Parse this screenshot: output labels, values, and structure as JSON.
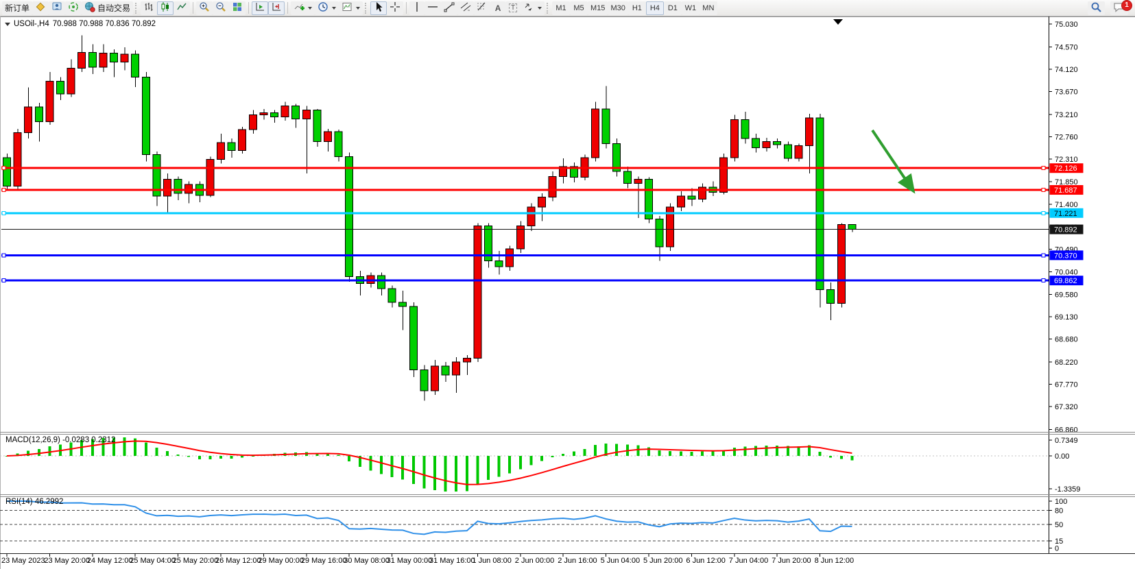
{
  "toolbar": {
    "new_order_label": "新订单",
    "auto_trading_label": "自动交易",
    "timeframes": [
      "M1",
      "M5",
      "M15",
      "M30",
      "H1",
      "H4",
      "D1",
      "W1",
      "MN"
    ],
    "active_timeframe": "H4",
    "notification_badge": "1",
    "glyphs": {
      "text_tool": "A",
      "label_tool": "T"
    }
  },
  "chart": {
    "title": "USOil-,H4",
    "quote": "70.988 70.988 70.836 70.892"
  },
  "chart_data": {
    "type": "candlestick",
    "symbol": "USOil-",
    "timeframe": "H4",
    "current_quote": {
      "open": "70.988",
      "high": "70.988",
      "low": "70.836",
      "close": "70.892"
    },
    "price_ticks": [
      "75.030",
      "74.570",
      "74.120",
      "73.670",
      "73.210",
      "72.760",
      "72.310",
      "71.850",
      "71.400",
      "70.940",
      "70.490",
      "70.040",
      "69.580",
      "69.130",
      "68.680",
      "68.220",
      "67.770",
      "67.320",
      "66.860"
    ],
    "time_labels": [
      "23 May 2023",
      "23 May 20:00",
      "24 May 12:00",
      "25 May 04:00",
      "25 May 20:00",
      "26 May 12:00",
      "29 May 00:00",
      "29 May 16:00",
      "30 May 08:00",
      "31 May 00:00",
      "31 May 16:00",
      "1 Jun 08:00",
      "2 Jun 00:00",
      "2 Jun 16:00",
      "5 Jun 04:00",
      "5 Jun 20:00",
      "6 Jun 12:00",
      "7 Jun 04:00",
      "7 Jun 20:00",
      "8 Jun 12:00"
    ],
    "colors": {
      "up": "#ee0000",
      "down": "#00d000",
      "wick": "#000000"
    },
    "candles": [
      [
        72.34,
        72.42,
        71.7,
        71.76
      ],
      [
        71.76,
        72.92,
        71.68,
        72.84
      ],
      [
        72.84,
        73.75,
        72.72,
        73.36
      ],
      [
        73.36,
        73.44,
        72.66,
        73.06
      ],
      [
        73.06,
        74.06,
        73.0,
        73.88
      ],
      [
        73.88,
        73.96,
        73.5,
        73.62
      ],
      [
        73.62,
        74.32,
        73.56,
        74.14
      ],
      [
        74.14,
        74.8,
        74.06,
        74.46
      ],
      [
        74.46,
        74.62,
        74.02,
        74.16
      ],
      [
        74.16,
        74.62,
        74.06,
        74.44
      ],
      [
        74.44,
        74.52,
        73.96,
        74.26
      ],
      [
        74.26,
        74.56,
        74.1,
        74.42
      ],
      [
        74.42,
        74.5,
        73.76,
        73.96
      ],
      [
        73.96,
        74.06,
        72.26,
        72.4
      ],
      [
        72.4,
        72.46,
        71.36,
        71.56
      ],
      [
        71.56,
        72.02,
        71.24,
        71.9
      ],
      [
        71.9,
        71.96,
        71.48,
        71.62
      ],
      [
        71.62,
        71.86,
        71.42,
        71.8
      ],
      [
        71.8,
        71.86,
        71.44,
        71.58
      ],
      [
        71.58,
        72.36,
        71.54,
        72.3
      ],
      [
        72.3,
        72.82,
        72.22,
        72.64
      ],
      [
        72.64,
        72.72,
        72.34,
        72.48
      ],
      [
        72.48,
        72.96,
        72.42,
        72.9
      ],
      [
        72.9,
        73.3,
        72.82,
        73.2
      ],
      [
        73.2,
        73.32,
        73.1,
        73.24
      ],
      [
        73.24,
        73.3,
        73.04,
        73.16
      ],
      [
        73.16,
        73.46,
        73.08,
        73.38
      ],
      [
        73.38,
        73.42,
        72.94,
        73.12
      ],
      [
        73.12,
        73.38,
        72.02,
        73.3
      ],
      [
        73.3,
        73.32,
        72.56,
        72.66
      ],
      [
        72.66,
        72.92,
        72.46,
        72.86
      ],
      [
        72.86,
        72.9,
        72.26,
        72.36
      ],
      [
        72.36,
        72.44,
        69.84,
        69.94
      ],
      [
        69.94,
        70.06,
        69.56,
        69.8
      ],
      [
        69.8,
        70.02,
        69.72,
        69.96
      ],
      [
        69.96,
        70.02,
        69.56,
        69.7
      ],
      [
        69.7,
        69.76,
        69.32,
        69.42
      ],
      [
        69.42,
        69.66,
        68.86,
        69.34
      ],
      [
        69.34,
        69.42,
        67.92,
        68.06
      ],
      [
        68.06,
        68.16,
        67.44,
        67.64
      ],
      [
        67.64,
        68.26,
        67.56,
        68.14
      ],
      [
        68.14,
        68.22,
        67.82,
        67.96
      ],
      [
        67.96,
        68.32,
        67.6,
        68.22
      ],
      [
        68.22,
        68.36,
        67.96,
        68.3
      ],
      [
        68.3,
        71.02,
        68.22,
        70.96
      ],
      [
        70.96,
        71.02,
        70.12,
        70.26
      ],
      [
        70.26,
        70.46,
        69.98,
        70.14
      ],
      [
        70.14,
        70.56,
        70.06,
        70.5
      ],
      [
        70.5,
        71.06,
        70.42,
        70.96
      ],
      [
        70.96,
        71.42,
        70.86,
        71.34
      ],
      [
        71.34,
        71.62,
        71.06,
        71.54
      ],
      [
        71.54,
        72.06,
        71.46,
        71.96
      ],
      [
        71.96,
        72.32,
        71.82,
        72.16
      ],
      [
        72.16,
        72.24,
        71.84,
        71.94
      ],
      [
        71.94,
        72.4,
        71.88,
        72.34
      ],
      [
        72.34,
        73.46,
        72.26,
        73.32
      ],
      [
        73.32,
        73.78,
        72.52,
        72.62
      ],
      [
        72.62,
        72.72,
        71.96,
        72.06
      ],
      [
        72.06,
        72.16,
        71.72,
        71.82
      ],
      [
        71.82,
        71.96,
        71.12,
        71.9
      ],
      [
        71.9,
        71.94,
        71.02,
        71.1
      ],
      [
        71.1,
        71.16,
        70.26,
        70.54
      ],
      [
        70.54,
        71.42,
        70.46,
        71.34
      ],
      [
        71.34,
        71.66,
        71.26,
        71.56
      ],
      [
        71.56,
        71.72,
        71.36,
        71.5
      ],
      [
        71.5,
        71.82,
        71.44,
        71.74
      ],
      [
        71.74,
        71.86,
        71.56,
        71.64
      ],
      [
        71.64,
        72.42,
        71.6,
        72.34
      ],
      [
        72.34,
        73.2,
        72.26,
        73.1
      ],
      [
        73.1,
        73.26,
        72.62,
        72.72
      ],
      [
        72.72,
        72.82,
        72.44,
        72.54
      ],
      [
        72.54,
        72.74,
        72.46,
        72.66
      ],
      [
        72.66,
        72.72,
        72.52,
        72.6
      ],
      [
        72.6,
        72.66,
        72.26,
        72.32
      ],
      [
        72.32,
        72.62,
        72.26,
        72.58
      ],
      [
        72.58,
        73.22,
        72.02,
        73.14
      ],
      [
        73.14,
        73.22,
        69.32,
        69.68
      ],
      [
        69.68,
        69.82,
        69.06,
        69.4
      ],
      [
        69.4,
        71.02,
        69.32,
        70.99
      ],
      [
        70.988,
        70.988,
        70.836,
        70.892
      ]
    ],
    "hlines": [
      {
        "value": "72.126",
        "color": "#fe0000",
        "badge_text": "#ffffff",
        "width": 3
      },
      {
        "value": "71.687",
        "color": "#fe0000",
        "badge_text": "#ffffff",
        "width": 3
      },
      {
        "value": "71.221",
        "color": "#00ccff",
        "badge_text": "#000000",
        "width": 3
      },
      {
        "value": "70.892",
        "color": "#151515",
        "badge_text": "#ffffff",
        "width": 1,
        "is_bid_line": true
      },
      {
        "value": "70.370",
        "color": "#0000ff",
        "badge_text": "#ffffff",
        "width": 3
      },
      {
        "value": "69.862",
        "color": "#0000ff",
        "badge_text": "#ffffff",
        "width": 3
      }
    ],
    "macd": {
      "label": "MACD(12,26,9) -0.0283 0.2312",
      "params": [
        12,
        26,
        9
      ],
      "main_current": -0.0283,
      "signal_current": 0.2312,
      "axis": [
        "0.7349",
        "0.00",
        "-1.3359"
      ],
      "histogram_color": "#00c800",
      "signal_color": "#ff0000"
    },
    "rsi": {
      "label": "RSI(14) 46.2992",
      "period": 14,
      "current": 46.2992,
      "axis": [
        "100",
        "80",
        "50",
        "15",
        "0"
      ],
      "levels": [
        80,
        50,
        15
      ],
      "line_color": "#2e8fe8"
    }
  },
  "annotations": {
    "trend_arrow": {
      "color": "#2f9e2f",
      "direction": "down-right"
    },
    "top_marker": {
      "shape": "down-triangle",
      "color": "#000000"
    }
  }
}
